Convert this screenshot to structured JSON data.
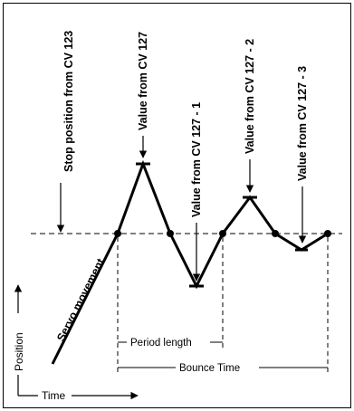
{
  "labels": {
    "stop_position": "Stop position from  CV 123",
    "value_cv127": "Value from CV 127",
    "value_cv127_1": "Value from CV 127 - 1",
    "value_cv127_2": "Value from CV 127 - 2",
    "value_cv127_3": "Value from CV 127 - 3",
    "servo_movement": "Servo movement",
    "position_axis": "Position",
    "time_axis": "Time",
    "period_length": "Period length",
    "bounce_time": "Bounce Time"
  },
  "colors": {
    "line": "#000000",
    "background": "#ffffff"
  }
}
